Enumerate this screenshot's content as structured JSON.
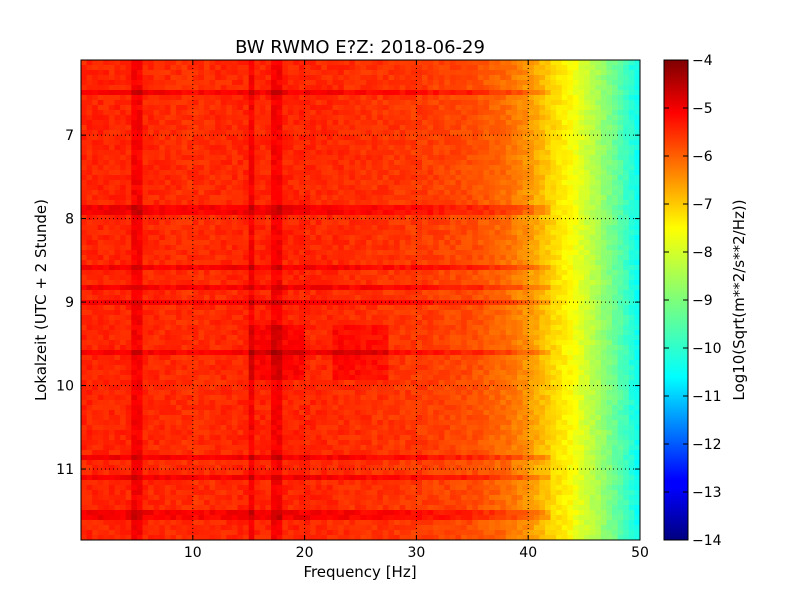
{
  "chart_data": {
    "type": "heatmap",
    "title": "BW RWMO E?Z: 2018-06-29",
    "xlabel": "Frequency [Hz]",
    "ylabel": "Lokalzeit (UTC + 2 Stunde)",
    "xlim": [
      0,
      50
    ],
    "ylim": [
      11.85,
      6.1
    ],
    "x_ticks": [
      "10",
      "20",
      "30",
      "40",
      "50"
    ],
    "y_ticks": [
      "7",
      "8",
      "9",
      "10",
      "11"
    ],
    "x_tick_values": [
      10,
      20,
      30,
      40,
      50
    ],
    "y_tick_values": [
      7,
      8,
      9,
      10,
      11
    ],
    "grid": true,
    "colormap": "jet",
    "colorbar": {
      "label": "Log10(Sqrt(m**2/s**2/Hz))",
      "range": [
        -14,
        -4
      ],
      "ticks": [
        "−4",
        "−5",
        "−6",
        "−7",
        "−8",
        "−9",
        "−10",
        "−11",
        "−12",
        "−13",
        "−14"
      ],
      "tick_values": [
        -4,
        -5,
        -6,
        -7,
        -8,
        -9,
        -10,
        -11,
        -12,
        -13,
        -14
      ]
    },
    "spectral_profile": {
      "frequency_hz": [
        0,
        5,
        10,
        15,
        20,
        25,
        30,
        35,
        38,
        40,
        42,
        44,
        46,
        48,
        50
      ],
      "log10_amplitude": [
        -5.6,
        -5.6,
        -5.7,
        -5.6,
        -5.6,
        -5.7,
        -5.8,
        -6.0,
        -6.3,
        -6.7,
        -7.3,
        -7.8,
        -8.5,
        -9.3,
        -10.2
      ]
    },
    "features": {
      "vertical_line_hz": [
        5.0,
        15.4,
        17.5
      ],
      "strong_rows_hours": [
        6.5,
        7.9,
        8.6,
        8.82,
        9.0,
        9.6,
        10.85,
        11.1,
        11.55
      ],
      "broad_peak_hz": [
        17.5,
        25.0
      ]
    }
  }
}
